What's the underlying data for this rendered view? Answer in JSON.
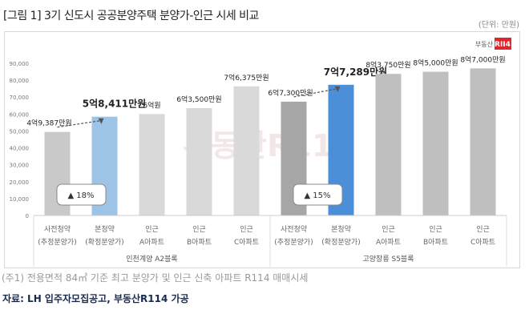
{
  "title": "[그림 1] 3기 신도시 공공분양주택 분양가-인근 시세 비교",
  "unit": "(단위: 만원)",
  "logo": "부동산R114",
  "watermark": "부동산R114",
  "note": "(주1) 전용면적 84㎡ 기준 최고 분양가 및 인근 신축 아파트 R114 매매시세",
  "source": "자료: LH 입주자모집공고, 부동산R114 가공",
  "chart_data": {
    "type": "bar",
    "ylim": [
      0,
      90000
    ],
    "yticks": [
      "0",
      "10,000",
      "20,000",
      "30,000",
      "40,000",
      "50,000",
      "60,000",
      "70,000",
      "80,000",
      "90,000"
    ],
    "categories": [
      [
        "사전청약",
        "(추정분양가)"
      ],
      [
        "본청약",
        "(확정분양가)"
      ],
      [
        "인근",
        "A아파트"
      ],
      [
        "인근",
        "B아파트"
      ],
      [
        "인근",
        "C아파트"
      ],
      [
        "사전청약",
        "(추정분양가)"
      ],
      [
        "본청약",
        "(확정분양가)"
      ],
      [
        "인근",
        "A아파트"
      ],
      [
        "인근",
        "B아파트"
      ],
      [
        "인근",
        "C아파트"
      ]
    ],
    "groups": [
      "인천계양 A2블록",
      "고양창릉 S5블록"
    ],
    "values": [
      49387,
      58411,
      60000,
      63500,
      76375,
      67300,
      77289,
      83750,
      85000,
      87000
    ],
    "data_labels": [
      "4억9,387만원",
      "5억8,411만원",
      "6억원",
      "6억3,500만원",
      "7억6,375만원",
      "6억7,300만원",
      "7억7,289만원",
      "8억3,750만원",
      "8억5,000만원",
      "8억7,000만원"
    ],
    "bar_colors": [
      "#c9c9c9",
      "#9dc3e6",
      "#d9d9d9",
      "#d9d9d9",
      "#d9d9d9",
      "#a6a6a6",
      "#4a8fd8",
      "#bfbfbf",
      "#bfbfbf",
      "#bfbfbf"
    ],
    "annotations": [
      "▲ 18%",
      "▲ 15%"
    ]
  }
}
